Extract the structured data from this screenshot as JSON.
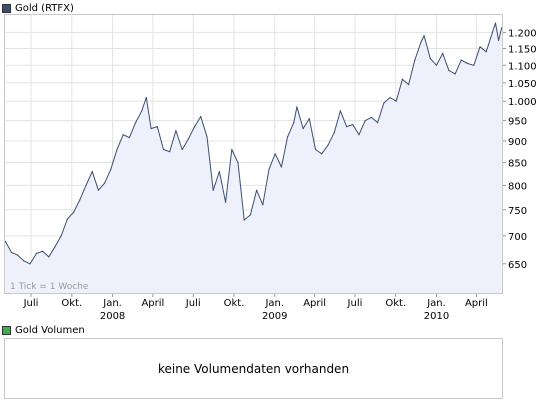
{
  "chart_data": {
    "type": "area",
    "legend_label": "Gold (RTFX)",
    "legend_color": "#3b4f70",
    "line_color": "#3b4f70",
    "fill_color": "#eef1fb",
    "note": "1 Tick = 1 Woche",
    "y_scale": "log",
    "ylim": [
      600,
      1260
    ],
    "y_ticks": [
      {
        "value": 650,
        "label": "650"
      },
      {
        "value": 700,
        "label": "700"
      },
      {
        "value": 750,
        "label": "750"
      },
      {
        "value": 800,
        "label": "800"
      },
      {
        "value": 850,
        "label": "850"
      },
      {
        "value": 900,
        "label": "900"
      },
      {
        "value": 950,
        "label": "950"
      },
      {
        "value": 1000,
        "label": "1.000"
      },
      {
        "value": 1050,
        "label": "1.050"
      },
      {
        "value": 1100,
        "label": "1.100"
      },
      {
        "value": 1150,
        "label": "1.150"
      },
      {
        "value": 1200,
        "label": "1.200"
      }
    ],
    "x_range": [
      "2007-05-01",
      "2010-05-31"
    ],
    "x_ticks": [
      {
        "date": "2007-07-01",
        "label": "Juli",
        "year": ""
      },
      {
        "date": "2007-10-01",
        "label": "Okt.",
        "year": ""
      },
      {
        "date": "2008-01-01",
        "label": "Jan.",
        "year": "2008"
      },
      {
        "date": "2008-04-01",
        "label": "April",
        "year": ""
      },
      {
        "date": "2008-07-01",
        "label": "Juli",
        "year": ""
      },
      {
        "date": "2008-10-01",
        "label": "Okt.",
        "year": ""
      },
      {
        "date": "2009-01-01",
        "label": "Jan.",
        "year": "2009"
      },
      {
        "date": "2009-04-01",
        "label": "April",
        "year": ""
      },
      {
        "date": "2009-07-01",
        "label": "Juli",
        "year": ""
      },
      {
        "date": "2009-10-01",
        "label": "Okt.",
        "year": ""
      },
      {
        "date": "2010-01-01",
        "label": "Jan.",
        "year": "2010"
      },
      {
        "date": "2010-04-01",
        "label": "April",
        "year": ""
      }
    ],
    "series": [
      {
        "points": [
          [
            "2007-05-04",
            690
          ],
          [
            "2007-05-18",
            670
          ],
          [
            "2007-06-01",
            665
          ],
          [
            "2007-06-15",
            655
          ],
          [
            "2007-06-29",
            650
          ],
          [
            "2007-07-13",
            668
          ],
          [
            "2007-07-27",
            672
          ],
          [
            "2007-08-10",
            662
          ],
          [
            "2007-08-24",
            680
          ],
          [
            "2007-09-07",
            700
          ],
          [
            "2007-09-21",
            732
          ],
          [
            "2007-10-05",
            745
          ],
          [
            "2007-10-19",
            770
          ],
          [
            "2007-11-02",
            800
          ],
          [
            "2007-11-16",
            830
          ],
          [
            "2007-11-30",
            790
          ],
          [
            "2007-12-14",
            805
          ],
          [
            "2007-12-28",
            835
          ],
          [
            "2008-01-11",
            880
          ],
          [
            "2008-01-25",
            915
          ],
          [
            "2008-02-08",
            908
          ],
          [
            "2008-02-22",
            945
          ],
          [
            "2008-03-07",
            975
          ],
          [
            "2008-03-17",
            1010
          ],
          [
            "2008-03-28",
            930
          ],
          [
            "2008-04-11",
            935
          ],
          [
            "2008-04-25",
            880
          ],
          [
            "2008-05-09",
            875
          ],
          [
            "2008-05-23",
            925
          ],
          [
            "2008-06-06",
            880
          ],
          [
            "2008-06-20",
            905
          ],
          [
            "2008-07-04",
            935
          ],
          [
            "2008-07-18",
            960
          ],
          [
            "2008-08-01",
            910
          ],
          [
            "2008-08-15",
            790
          ],
          [
            "2008-08-29",
            830
          ],
          [
            "2008-09-12",
            765
          ],
          [
            "2008-09-26",
            880
          ],
          [
            "2008-10-10",
            850
          ],
          [
            "2008-10-24",
            730
          ],
          [
            "2008-11-07",
            740
          ],
          [
            "2008-11-21",
            790
          ],
          [
            "2008-12-05",
            760
          ],
          [
            "2008-12-19",
            835
          ],
          [
            "2009-01-02",
            870
          ],
          [
            "2009-01-16",
            840
          ],
          [
            "2009-01-30",
            910
          ],
          [
            "2009-02-13",
            945
          ],
          [
            "2009-02-20",
            985
          ],
          [
            "2009-03-06",
            930
          ],
          [
            "2009-03-20",
            955
          ],
          [
            "2009-04-03",
            880
          ],
          [
            "2009-04-17",
            870
          ],
          [
            "2009-05-01",
            890
          ],
          [
            "2009-05-15",
            920
          ],
          [
            "2009-05-29",
            975
          ],
          [
            "2009-06-12",
            935
          ],
          [
            "2009-06-26",
            940
          ],
          [
            "2009-07-10",
            915
          ],
          [
            "2009-07-24",
            950
          ],
          [
            "2009-08-07",
            958
          ],
          [
            "2009-08-21",
            945
          ],
          [
            "2009-09-04",
            995
          ],
          [
            "2009-09-18",
            1010
          ],
          [
            "2009-10-02",
            1000
          ],
          [
            "2009-10-16",
            1060
          ],
          [
            "2009-10-30",
            1045
          ],
          [
            "2009-11-13",
            1115
          ],
          [
            "2009-11-27",
            1170
          ],
          [
            "2009-12-04",
            1190
          ],
          [
            "2009-12-18",
            1120
          ],
          [
            "2010-01-01",
            1100
          ],
          [
            "2010-01-15",
            1135
          ],
          [
            "2010-01-29",
            1085
          ],
          [
            "2010-02-12",
            1075
          ],
          [
            "2010-02-26",
            1115
          ],
          [
            "2010-03-12",
            1105
          ],
          [
            "2010-03-26",
            1100
          ],
          [
            "2010-04-09",
            1155
          ],
          [
            "2010-04-23",
            1140
          ],
          [
            "2010-05-07",
            1200
          ],
          [
            "2010-05-14",
            1230
          ],
          [
            "2010-05-21",
            1175
          ],
          [
            "2010-05-28",
            1215
          ]
        ]
      }
    ]
  },
  "volume": {
    "legend_label": "Gold Volumen",
    "legend_color": "#3cb043",
    "message": "keine Volumendaten vorhanden"
  }
}
